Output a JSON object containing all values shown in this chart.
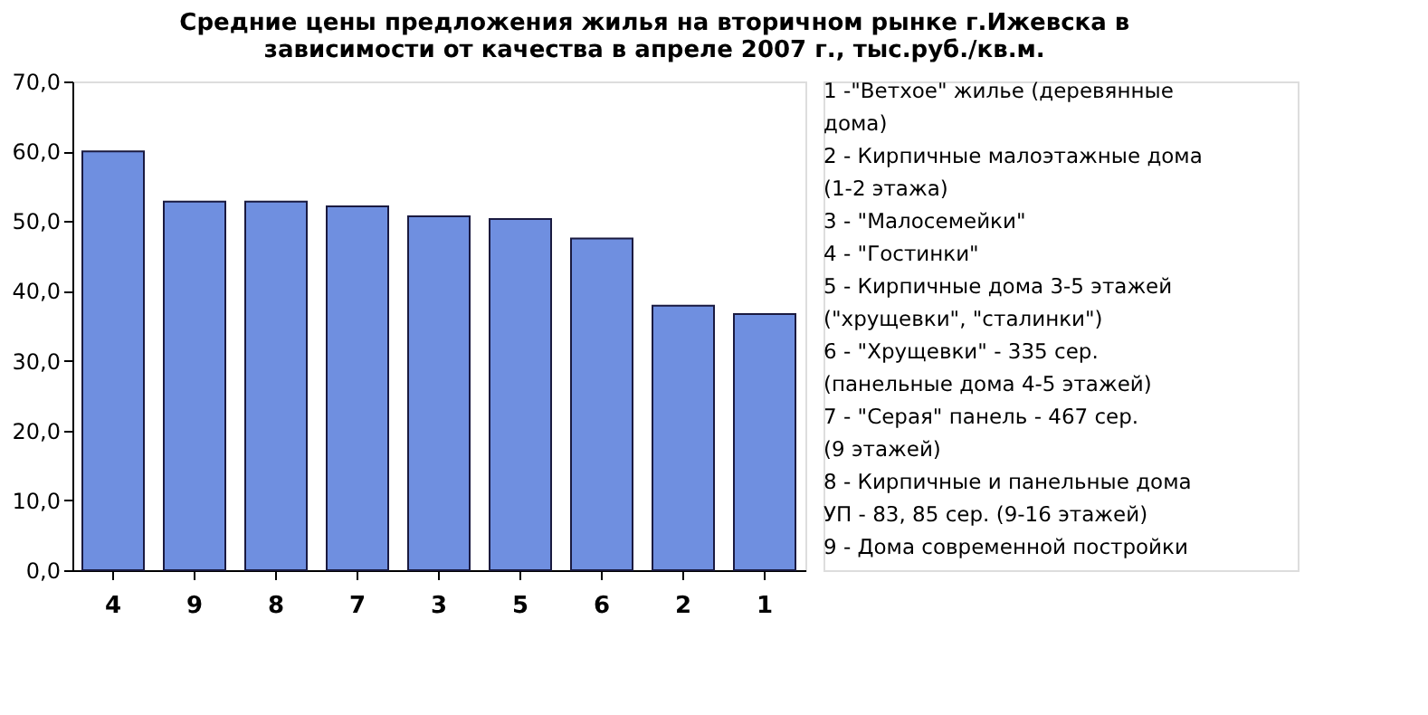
{
  "chart_data": {
    "type": "bar",
    "title": [
      "Средние цены предложения жилья на вторичном рынке г.Ижевска в",
      "зависимости от качества в апреле 2007 г., тыс.руб./кв.м."
    ],
    "categories": [
      "4",
      "9",
      "8",
      "7",
      "3",
      "5",
      "6",
      "2",
      "1"
    ],
    "values": [
      60.0,
      52.8,
      52.8,
      52.1,
      50.7,
      50.3,
      47.5,
      37.9,
      36.7
    ],
    "color": "#6f8fe0",
    "ylim": [
      0,
      70
    ],
    "yticks": [
      {
        "value": 0,
        "label": "0,0"
      },
      {
        "value": 10,
        "label": "10,0"
      },
      {
        "value": 20,
        "label": "20,0"
      },
      {
        "value": 30,
        "label": "30,0"
      },
      {
        "value": 40,
        "label": "40,0"
      },
      {
        "value": 50,
        "label": "50,0"
      },
      {
        "value": 60,
        "label": "60,0"
      },
      {
        "value": 70,
        "label": "70,0"
      }
    ],
    "grid": false,
    "annotations": [
      "1 -\"Ветхое\" жилье (деревянные дома)",
      "2 - Кирпичные малоэтажные дома (1-2 этажа)",
      "3 - \"Малосемейки\"",
      "4 - \"Гостинки\"",
      "5 - Кирпичные дома 3-5 этажей (\"хрущевки\", \"сталинки\")",
      "6 - \"Хрущевки\" - 335 сер. (панельные дома 4-5 этажей)",
      "7 - \"Серая\" панель - 467 сер. (9 этажей)",
      "8 - Кирпичные и панельные дома УП - 83, 85 сер. (9-16 этажей)",
      "9 - Дома современной постройки"
    ]
  }
}
